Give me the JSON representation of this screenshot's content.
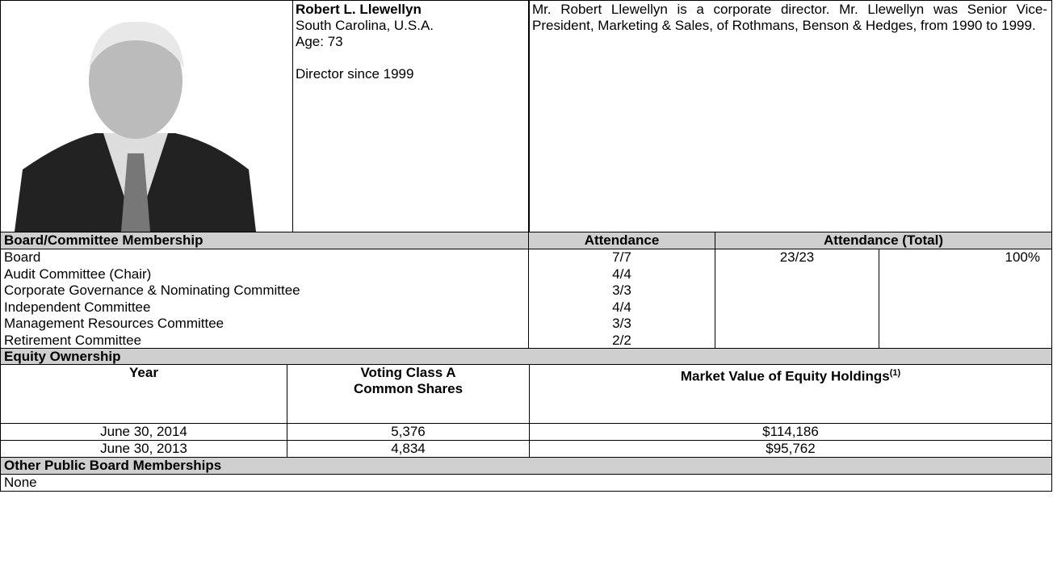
{
  "profile": {
    "name": "Robert L. Llewellyn",
    "location": "South Carolina, U.S.A.",
    "age": "Age:  73",
    "director_since": "Director since 1999",
    "bio": "Mr. Robert Llewellyn is a corporate director. Mr. Llewellyn was Senior Vice-President, Marketing & Sales, of Rothmans, Benson & Hedges, from 1990 to 1999."
  },
  "membership": {
    "headers": [
      "Board/Committee Membership",
      "Attendance",
      "Attendance (Total)"
    ],
    "rows": [
      [
        "Board",
        "7/7"
      ],
      [
        "Audit Committee (Chair)",
        "4/4"
      ],
      [
        "Corporate Governance & Nominating Committee",
        "3/3"
      ],
      [
        "Independent Committee",
        "4/4"
      ],
      [
        "Management Resources Committee",
        "3/3"
      ],
      [
        "Retirement Committee",
        "2/2"
      ]
    ],
    "total": [
      "23/23",
      "100%"
    ]
  },
  "equity": {
    "title": "Equity Ownership",
    "headers": [
      "Year",
      "Voting Class A Common Shares",
      "Market Value of Equity Holdings"
    ],
    "footnote": "(1)",
    "rows": [
      [
        "June 30, 2014",
        "5,376",
        "$114,186"
      ],
      [
        "June 30, 2013",
        "4,834",
        "$95,762"
      ]
    ]
  },
  "other": {
    "title": "Other Public Board Memberships",
    "value": "None"
  }
}
